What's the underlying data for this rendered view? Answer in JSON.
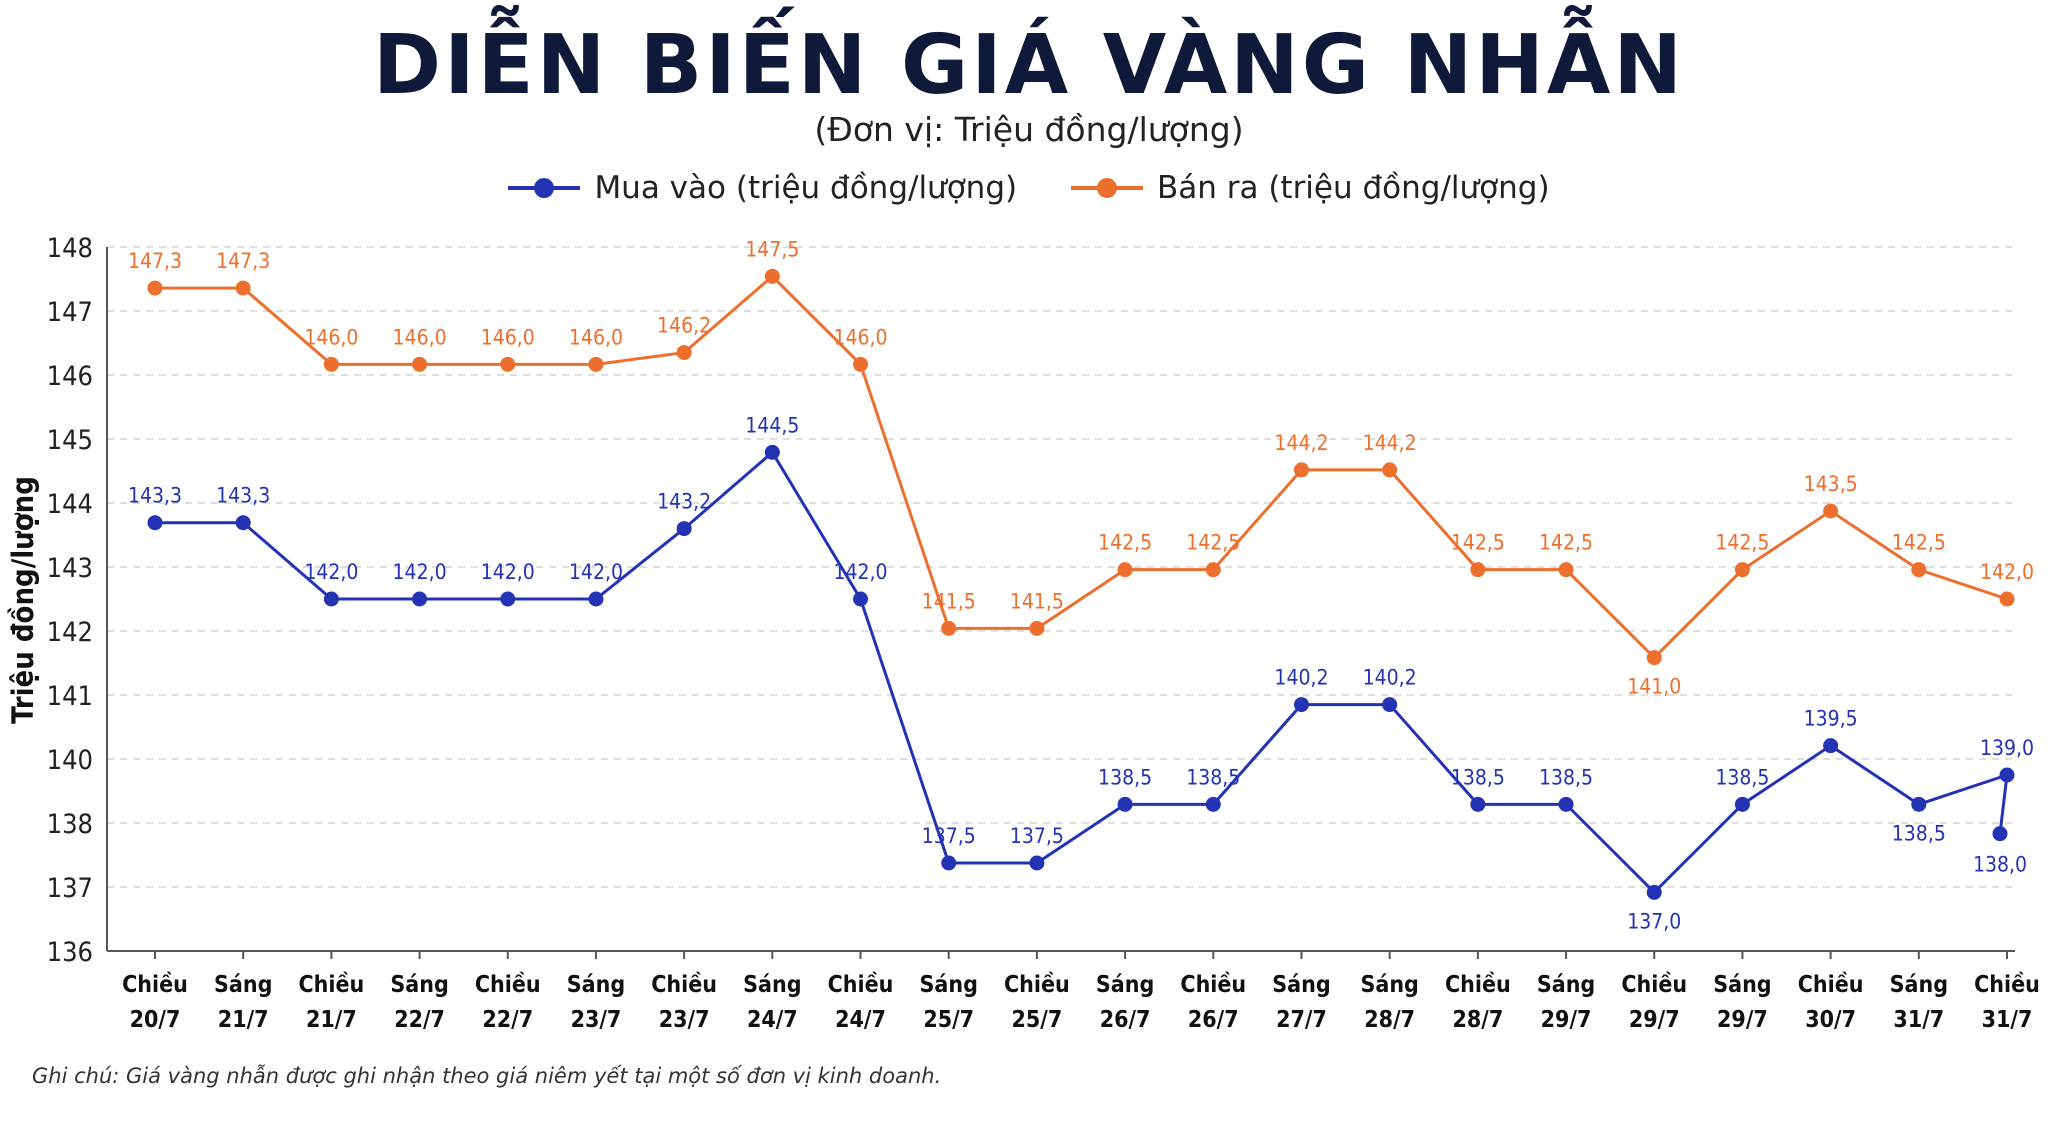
{
  "chart_data": {
    "type": "line",
    "title": "DIỄN BIẾN GIÁ VÀNG NHẪN",
    "subtitle": "(Đơn vị: Triệu đồng/lượng)",
    "ylabel": "Triệu đồng/lượng",
    "ylim": [
      136,
      148
    ],
    "yticks": [
      "136",
      "137",
      "138",
      "140",
      "141",
      "142",
      "143",
      "144",
      "145",
      "146",
      "147",
      "148"
    ],
    "grid": true,
    "legend": "top-center",
    "categories": [
      [
        "Chiều",
        "20/7"
      ],
      [
        "Sáng",
        "21/7"
      ],
      [
        "Chiều",
        "21/7"
      ],
      [
        "Sáng",
        "22/7"
      ],
      [
        "Chiều",
        "22/7"
      ],
      [
        "Sáng",
        "23/7"
      ],
      [
        "Chiều",
        "23/7"
      ],
      [
        "Sáng",
        "24/7"
      ],
      [
        "Chiều",
        "24/7"
      ],
      [
        "Sáng",
        "25/7"
      ],
      [
        "Chiều",
        "25/7"
      ],
      [
        "Sáng",
        "26/7"
      ],
      [
        "Chiều",
        "26/7"
      ],
      [
        "Sáng",
        "27/7"
      ],
      [
        "Sáng",
        "28/7"
      ],
      [
        "Chiều",
        "28/7"
      ],
      [
        "Sáng",
        "29/7"
      ],
      [
        "Chiều",
        "29/7"
      ],
      [
        "Sáng",
        "29/7"
      ],
      [
        "Chiều",
        "30/7"
      ],
      [
        "Sáng",
        "31/7"
      ],
      [
        "Chiều",
        "31/7"
      ]
    ],
    "series": [
      {
        "name": "Mua vào (triệu đồng/lượng)",
        "color": "#2433b4",
        "values": [
          143.3,
          143.3,
          142.0,
          142.0,
          142.0,
          142.0,
          143.2,
          144.5,
          142.0,
          137.5,
          137.5,
          138.5,
          138.5,
          140.2,
          140.2,
          138.5,
          138.5,
          137.0,
          138.5,
          139.5,
          138.5,
          139.0
        ],
        "labels": [
          "143,3",
          "143,3",
          "142,0",
          "142,0",
          "142,0",
          "142,0",
          "143,2",
          "144,5",
          "142,0",
          "137,5",
          "137,5",
          "138,5",
          "138,5",
          "140,2",
          "140,2",
          "138,5",
          "138,5",
          "137,0",
          "138,5",
          "139,5",
          "138,5",
          "139,0"
        ]
      },
      {
        "name": "Bán ra (triệu đồng/lượng)",
        "color": "#ec6f2d",
        "values": [
          147.3,
          147.3,
          146.0,
          146.0,
          146.0,
          146.0,
          146.2,
          147.5,
          146.0,
          141.5,
          141.5,
          142.5,
          142.5,
          144.2,
          144.2,
          142.5,
          142.5,
          141.0,
          142.5,
          143.5,
          142.5,
          142.0
        ],
        "labels": [
          "147,3",
          "147,3",
          "146,0",
          "146,0",
          "146,0",
          "146,0",
          "146,2",
          "147,5",
          "146,0",
          "141,5",
          "141,5",
          "142,5",
          "142,5",
          "144,2",
          "144,2",
          "142,5",
          "142,5",
          "141,0",
          "142,5",
          "143,5",
          "142,5",
          "142,0"
        ]
      }
    ],
    "extra_point_labels": [
      {
        "series": 0,
        "label": "138,0",
        "value": 138.0
      }
    ]
  },
  "footnote": "Ghi chú: Giá vàng nhẫn được ghi nhận theo giá niêm yết tại một số đơn vị kinh doanh."
}
